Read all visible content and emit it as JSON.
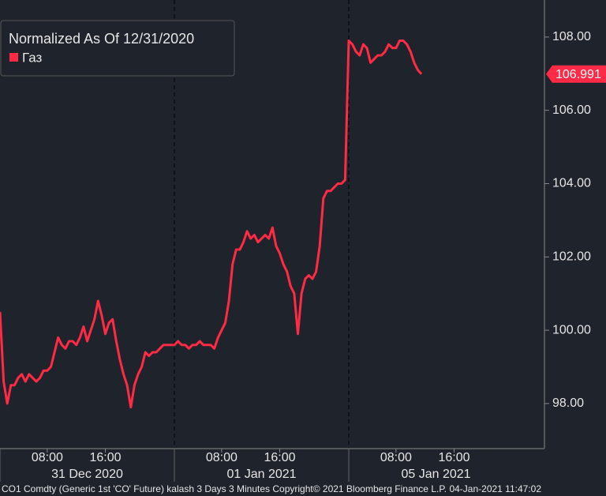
{
  "chart_data": {
    "type": "line",
    "legend_title": "Normalized As Of 12/31/2020",
    "footer": "CO1 Comdty (Generic 1st 'CO' Future) kalash 3 Days 3 Minutes  Copyright© 2021 Bloomberg Finance L.P.  04-Jan-2021 11:47:02",
    "date_labels": [
      "31 Dec 2020",
      "01 Jan 2021",
      "05 Jan 2021"
    ],
    "categories": [
      null,
      null,
      null,
      null,
      null,
      null,
      null,
      null,
      null,
      null,
      null,
      null,
      null,
      "08:00",
      null,
      null,
      null,
      null,
      null,
      null,
      null,
      null,
      null,
      null,
      null,
      null,
      null,
      null,
      null,
      "16:00",
      null,
      null,
      null,
      null,
      null,
      null,
      null,
      null,
      null,
      null,
      null,
      null,
      null,
      null,
      null,
      null,
      null,
      null,
      null,
      null,
      null,
      null,
      null,
      null,
      null,
      null,
      null,
      null,
      null,
      null,
      null,
      "08:00",
      null,
      null,
      null,
      null,
      null,
      null,
      null,
      null,
      null,
      null,
      null,
      null,
      null,
      null,
      null,
      "16:00",
      null,
      null,
      null,
      null,
      null,
      null,
      null,
      null,
      null,
      null,
      null,
      null,
      null,
      null,
      null,
      null,
      null,
      null,
      null,
      null,
      null,
      null,
      null,
      null,
      null,
      null,
      null,
      null,
      null,
      null,
      null,
      "08:00",
      null,
      null,
      null,
      null,
      null,
      null,
      null,
      null,
      null,
      null,
      null,
      null,
      null,
      null,
      null,
      "16:00",
      null,
      null,
      null,
      null,
      null,
      null,
      null,
      null,
      null,
      null,
      null,
      null,
      null,
      null,
      null,
      null,
      null,
      null
    ],
    "series": [
      {
        "name": "Газ",
        "color": "#ff2a45",
        "values": [
          100.5,
          98.6,
          98.0,
          98.5,
          98.5,
          98.7,
          98.8,
          98.6,
          98.8,
          98.7,
          98.6,
          98.7,
          98.9,
          98.9,
          99.0,
          99.4,
          99.8,
          99.6,
          99.5,
          99.7,
          99.7,
          99.6,
          99.8,
          100.1,
          99.7,
          100.0,
          100.3,
          100.8,
          100.4,
          99.9,
          100.2,
          100.3,
          99.7,
          99.2,
          98.8,
          98.5,
          97.9,
          98.5,
          98.8,
          99.0,
          99.4,
          99.3,
          99.4,
          99.4,
          99.5,
          99.6,
          99.6,
          99.6,
          99.6,
          99.7,
          99.6,
          99.6,
          99.5,
          99.6,
          99.6,
          99.7,
          99.6,
          99.6,
          99.6,
          99.5,
          99.8,
          100.0,
          100.2,
          100.8,
          101.8,
          102.2,
          102.2,
          102.4,
          102.7,
          102.5,
          102.6,
          102.4,
          102.5,
          102.6,
          102.5,
          102.8,
          102.3,
          102.1,
          101.8,
          101.6,
          101.2,
          101.0,
          99.9,
          101.0,
          101.4,
          101.5,
          101.4,
          101.6,
          102.3,
          103.6,
          103.8,
          103.8,
          103.9,
          104.0,
          104.0,
          104.1,
          107.9,
          107.8,
          107.6,
          107.5,
          107.8,
          107.7,
          107.3,
          107.4,
          107.5,
          107.5,
          107.6,
          107.8,
          107.7,
          107.7,
          107.9,
          107.9,
          107.8,
          107.6,
          107.3,
          107.1,
          106.991,
          null,
          null,
          null,
          null,
          null,
          null,
          null,
          null,
          null,
          null,
          null,
          null,
          null,
          null,
          null,
          null,
          null,
          null,
          null,
          null,
          null,
          null,
          null,
          null,
          null,
          null,
          null
        ]
      }
    ],
    "ylim": [
      96.77,
      109.01
    ],
    "yticks": [
      {
        "value": 98,
        "label": "98.00"
      },
      {
        "value": 100,
        "label": "100.00"
      },
      {
        "value": 102,
        "label": "102.00"
      },
      {
        "value": 104,
        "label": "104.00"
      },
      {
        "value": 106,
        "label": "106.00"
      },
      {
        "value": 108,
        "label": "108.00"
      }
    ]
  }
}
